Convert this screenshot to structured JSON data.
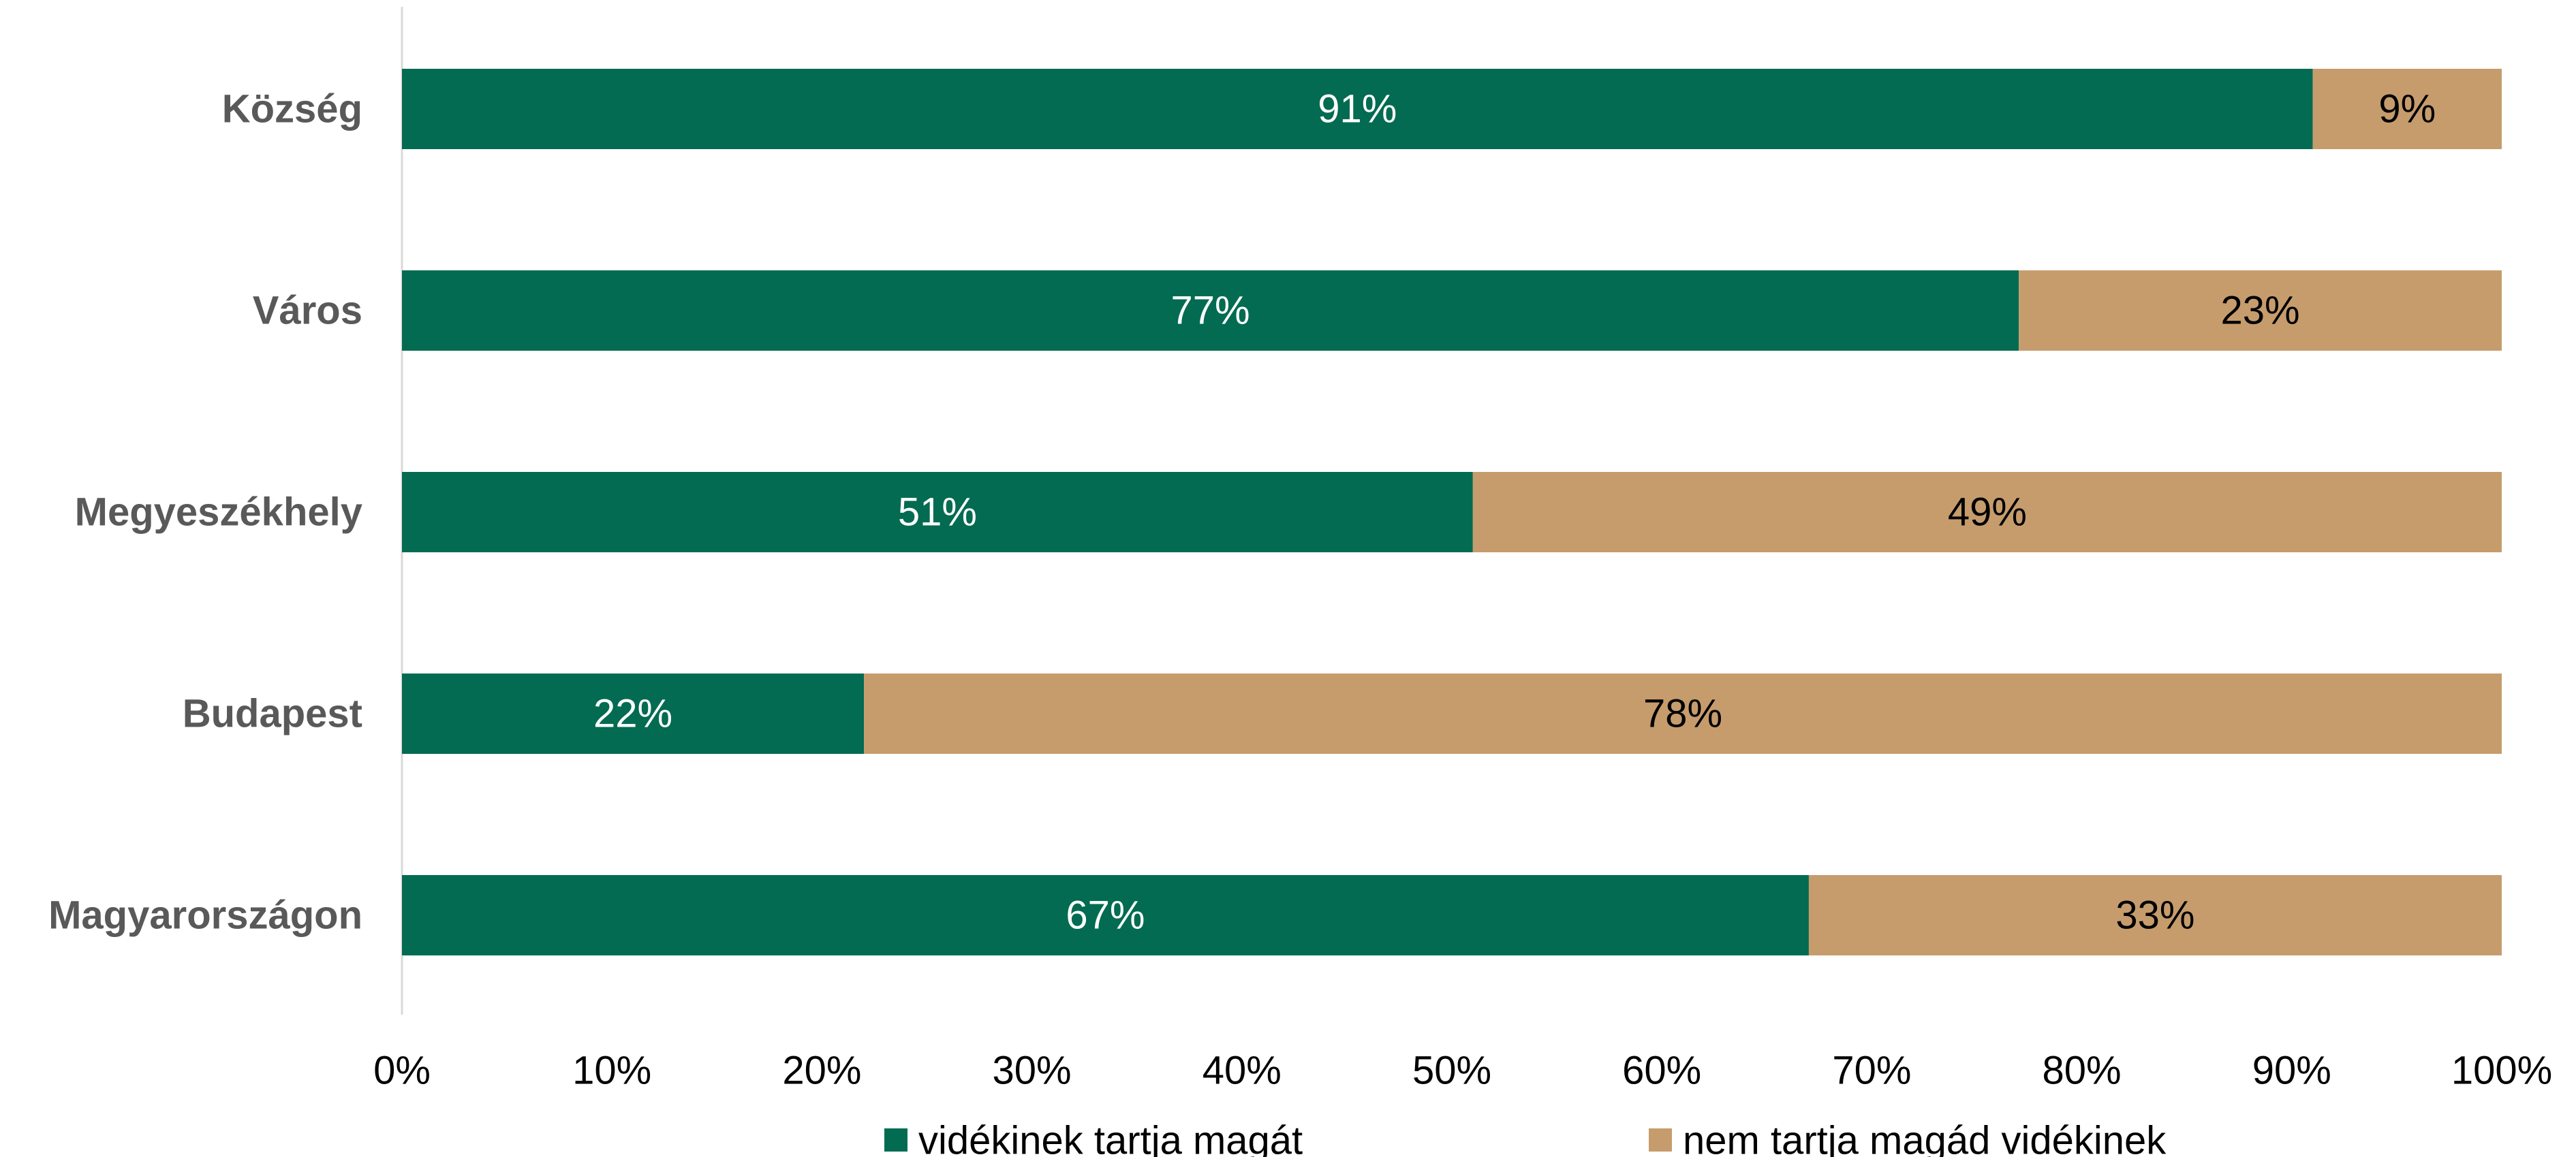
{
  "chart_data": {
    "type": "bar",
    "orientation": "horizontal",
    "stacked": true,
    "categories": [
      "Község",
      "Város",
      "Megyeszékhely",
      "Budapest",
      "Magyarországon"
    ],
    "series": [
      {
        "name": "vidékinek tartja magát",
        "color": "#026B51",
        "label_color": "#FFFFFF",
        "values": [
          91,
          77,
          51,
          22,
          67
        ],
        "labels": [
          "91%",
          "77%",
          "51%",
          "22%",
          "67%"
        ]
      },
      {
        "name": "nem tartja magád vidékinek",
        "color": "#C69C6D",
        "label_color": "#000000",
        "values": [
          9,
          23,
          49,
          78,
          33
        ],
        "labels": [
          "9%",
          "23%",
          "49%",
          "78%",
          "33%"
        ]
      }
    ],
    "xlim": [
      0,
      100
    ],
    "xticks": [
      0,
      10,
      20,
      30,
      40,
      50,
      60,
      70,
      80,
      90,
      100
    ],
    "xtick_labels": [
      "0%",
      "10%",
      "20%",
      "30%",
      "40%",
      "50%",
      "60%",
      "70%",
      "80%",
      "90%",
      "100%"
    ],
    "grid": false,
    "legend_position": "bottom"
  }
}
